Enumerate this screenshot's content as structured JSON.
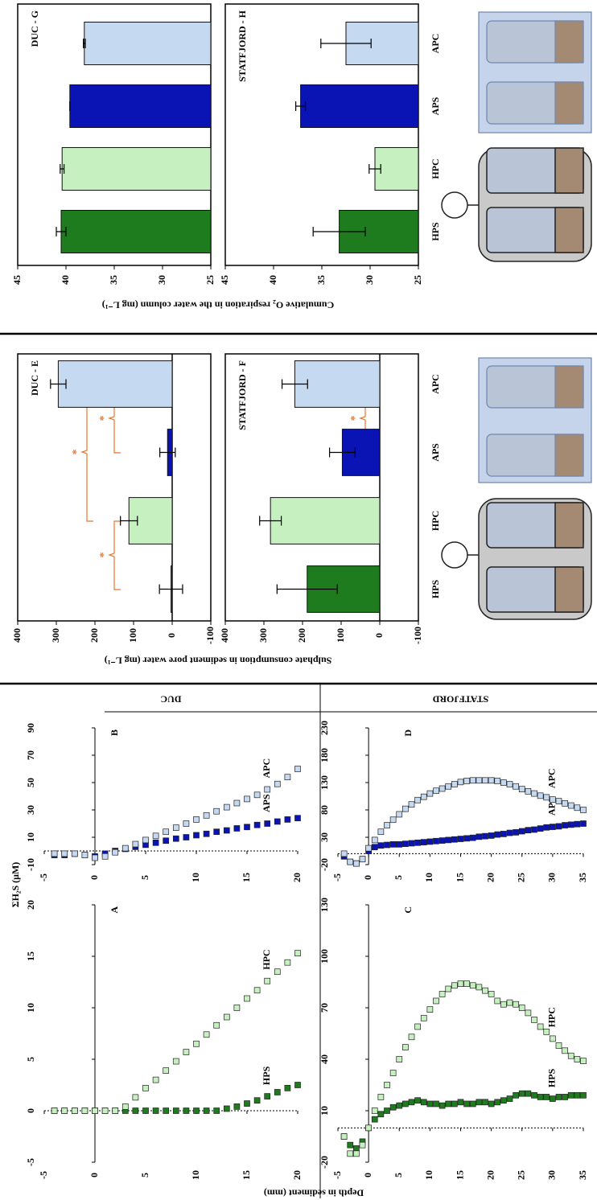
{
  "chart_data": [
    {
      "type": "line",
      "label": "A",
      "xlabel": "Depth in sediment (mm)",
      "x": [
        -4,
        -3,
        -2,
        -1,
        0,
        1,
        2,
        3,
        4,
        5,
        6,
        7,
        8,
        9,
        10,
        11,
        12,
        13,
        14,
        15,
        16,
        17,
        18,
        19,
        20
      ],
      "xlim": [
        -5,
        20
      ],
      "xticks": [
        -5,
        0,
        5,
        10,
        15,
        20
      ],
      "ylim": [
        -5,
        20
      ],
      "yticks": [
        -5,
        0,
        5,
        10,
        15,
        20
      ],
      "series": [
        {
          "name": "HPS",
          "color": "#1e7b1e",
          "values": [
            0,
            0,
            0,
            0,
            0,
            0,
            0,
            0,
            0,
            0,
            0,
            0,
            0,
            0,
            0,
            0,
            0,
            0.2,
            0.4,
            0.7,
            1.0,
            1.4,
            1.8,
            2.2,
            2.5
          ]
        },
        {
          "name": "HPC",
          "color": "#c6f0bf",
          "values": [
            0,
            0,
            0,
            0,
            0,
            0,
            0,
            0.4,
            1.3,
            2.2,
            3.0,
            3.9,
            4.8,
            5.7,
            6.5,
            7.4,
            8.3,
            9.1,
            10.0,
            10.9,
            11.7,
            12.6,
            13.5,
            14.4,
            15.3
          ]
        }
      ]
    },
    {
      "type": "line",
      "label": "B",
      "header": "DUC",
      "ylabel": "ΣH₂S (μM)",
      "x": [
        -4,
        -3,
        -2,
        -1,
        0,
        1,
        2,
        3,
        4,
        5,
        6,
        7,
        8,
        9,
        10,
        11,
        12,
        13,
        14,
        15,
        16,
        17,
        18,
        19,
        20
      ],
      "xlim": [
        -5,
        20
      ],
      "xticks": [
        -5,
        0,
        5,
        10,
        15,
        20
      ],
      "ylim": [
        -10,
        90
      ],
      "yticks": [
        -10,
        10,
        30,
        50,
        70,
        90
      ],
      "series": [
        {
          "name": "APS",
          "color": "#0a14b4",
          "values": [
            -3,
            -3,
            -2,
            -3,
            -4,
            -2,
            0,
            1.5,
            3,
            4.5,
            6,
            7.5,
            9,
            10,
            11.5,
            12.5,
            14,
            15,
            16.5,
            17.5,
            19,
            20,
            21.5,
            23,
            24
          ]
        },
        {
          "name": "APC",
          "color": "#c5d9f1",
          "values": [
            -2,
            -2,
            -2,
            -3,
            -5,
            -4,
            -1,
            2,
            5,
            8,
            11,
            14,
            17,
            20,
            23,
            26,
            29,
            32,
            35,
            38,
            41,
            45,
            49,
            54,
            60
          ]
        }
      ]
    },
    {
      "type": "line",
      "label": "C",
      "x": [
        -4,
        -3,
        -2,
        -1,
        0,
        1,
        2,
        3,
        4,
        5,
        6,
        7,
        8,
        9,
        10,
        11,
        12,
        13,
        14,
        15,
        16,
        17,
        18,
        19,
        20,
        21,
        22,
        23,
        24,
        25,
        26,
        27,
        28,
        29,
        30,
        31,
        32,
        33,
        34,
        35
      ],
      "xlim": [
        -5,
        35
      ],
      "xticks": [
        -5,
        0,
        5,
        10,
        15,
        20,
        25,
        30,
        35
      ],
      "ylim": [
        -20,
        130
      ],
      "yticks": [
        -20,
        10,
        40,
        70,
        100,
        130
      ],
      "series": [
        {
          "name": "HPS",
          "color": "#1e7b1e",
          "values": [
            -5,
            -10,
            -12,
            -8,
            0,
            5,
            8,
            10,
            12,
            13,
            14,
            15,
            16,
            15,
            14,
            14,
            13,
            14,
            14,
            15,
            14,
            14,
            15,
            15,
            14,
            15,
            16,
            17,
            19,
            20,
            20,
            19,
            18,
            18,
            17,
            18,
            18,
            19,
            19,
            19
          ]
        },
        {
          "name": "HPC",
          "color": "#c6f0bf",
          "values": [
            -5,
            -15,
            -15,
            -10,
            0,
            10,
            18,
            25,
            32,
            40,
            47,
            53,
            59,
            64,
            69,
            74,
            78,
            81,
            83,
            84,
            84,
            83,
            82,
            80,
            78,
            74,
            72,
            73,
            72,
            70,
            67,
            63,
            59,
            56,
            52,
            48,
            45,
            42,
            40,
            39
          ]
        }
      ]
    },
    {
      "type": "line",
      "label": "D",
      "header": "STATFJORD",
      "x": [
        -4,
        -3,
        -2,
        -1,
        0,
        1,
        2,
        3,
        4,
        5,
        6,
        7,
        8,
        9,
        10,
        11,
        12,
        13,
        14,
        15,
        16,
        17,
        18,
        19,
        20,
        21,
        22,
        23,
        24,
        25,
        26,
        27,
        28,
        29,
        30,
        31,
        32,
        33,
        34,
        35
      ],
      "xlim": [
        -5,
        35
      ],
      "xticks": [
        -5,
        0,
        5,
        10,
        15,
        20,
        25,
        30,
        35
      ],
      "ylim": [
        -20,
        230
      ],
      "yticks": [
        -20,
        30,
        80,
        130,
        180,
        230
      ],
      "series": [
        {
          "name": "APS",
          "color": "#0a14b4",
          "values": [
            -5,
            -15,
            -18,
            -10,
            5,
            12,
            15,
            16,
            17,
            17,
            18,
            19,
            20,
            21,
            22,
            23,
            24,
            25,
            26,
            27,
            28,
            29,
            31,
            32,
            33,
            35,
            36,
            38,
            39,
            41,
            43,
            44,
            46,
            48,
            49,
            50,
            52,
            53,
            54,
            55
          ]
        },
        {
          "name": "APC",
          "color": "#c5d9f1",
          "values": [
            0,
            -15,
            -18,
            -10,
            10,
            25,
            40,
            52,
            62,
            72,
            82,
            90,
            98,
            104,
            110,
            115,
            119,
            123,
            127,
            131,
            133,
            134,
            134,
            134,
            134,
            133,
            130,
            127,
            123,
            118,
            114,
            110,
            106,
            103,
            99,
            96,
            92,
            88,
            84,
            80
          ]
        }
      ]
    },
    {
      "type": "bar",
      "title": "DUC - E",
      "ylabel": "Sulphate consumption in sediment pore water (mg L⁻¹)",
      "values": [
        3,
        112,
        12,
        295
      ],
      "errors": [
        30,
        22,
        20,
        20
      ],
      "colors": [
        "#1e7b1e",
        "#c6f0bf",
        "#0a14b4",
        "#c5d9f1"
      ],
      "ylim": [
        -100,
        400
      ],
      "yticks": [
        -100,
        0,
        100,
        200,
        300,
        400
      ],
      "annotations": [
        "*",
        "*",
        "*"
      ]
    },
    {
      "type": "bar",
      "title": "STATFJORD - F",
      "categories": [
        "HPS",
        "HPC",
        "APS",
        "APC"
      ],
      "values": [
        188,
        283,
        97,
        220
      ],
      "errors": [
        78,
        28,
        33,
        33
      ],
      "colors": [
        "#1e7b1e",
        "#c6f0bf",
        "#0a14b4",
        "#c5d9f1"
      ],
      "ylim": [
        -100,
        400
      ],
      "yticks": [
        -100,
        0,
        100,
        200,
        300,
        400
      ],
      "annotations": [
        "*"
      ]
    },
    {
      "type": "bar",
      "title": "DUC - G",
      "ylabel": "Cumulative O₂ respiration in the water column (mg L⁻¹)",
      "values": [
        40.5,
        40.4,
        39.6,
        38.1
      ],
      "errors": [
        0.5,
        0.2,
        0,
        0.1
      ],
      "colors": [
        "#1e7b1e",
        "#c6f0bf",
        "#0a14b4",
        "#c5d9f1"
      ],
      "ylim": [
        25,
        45
      ],
      "yticks": [
        25,
        30,
        35,
        40,
        45
      ]
    },
    {
      "type": "bar",
      "title": "STATFJORD - H",
      "categories": [
        "HPS",
        "HPC",
        "APS",
        "APC"
      ],
      "values": [
        33.2,
        29.5,
        37.2,
        32.5
      ],
      "errors": [
        2.7,
        0.6,
        0.5,
        2.6
      ],
      "colors": [
        "#1e7b1e",
        "#c6f0bf",
        "#0a14b4",
        "#c5d9f1"
      ],
      "ylim": [
        25,
        45
      ],
      "yticks": [
        25,
        30,
        35,
        40,
        45
      ]
    }
  ]
}
